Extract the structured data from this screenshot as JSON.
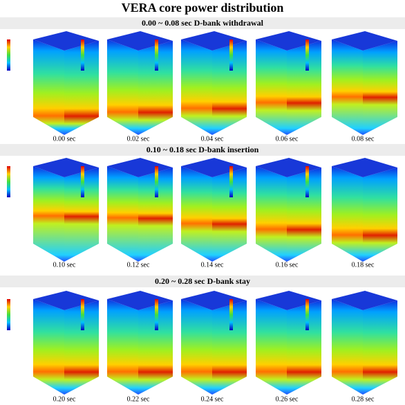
{
  "title": "VERA core power distribution",
  "sections": [
    {
      "heading": "0.00 ~ 0.08 sec D-bank withdrawal",
      "panels": [
        "0.00 sec",
        "0.02 sec",
        "0.04 sec",
        "0.06 sec",
        "0.08 sec"
      ]
    },
    {
      "heading": "0.10 ~ 0.18 sec D-bank insertion",
      "panels": [
        "0.10 sec",
        "0.12 sec",
        "0.14 sec",
        "0.16 sec",
        "0.18 sec"
      ]
    },
    {
      "heading": "0.20 ~ 0.28 sec D-bank stay",
      "panels": [
        "0.20 sec",
        "0.22 sec",
        "0.24 sec",
        "0.26 sec",
        "0.28 sec"
      ]
    }
  ]
}
